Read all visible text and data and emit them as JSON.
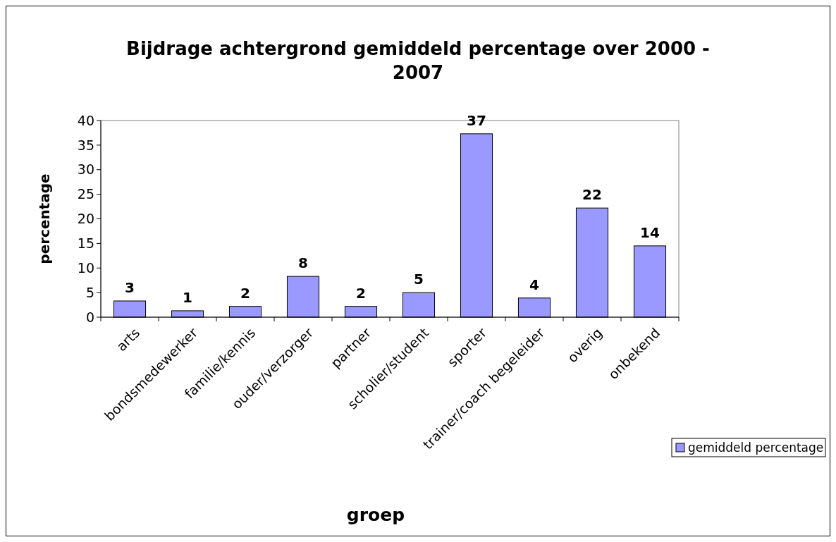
{
  "chart_data": {
    "type": "bar",
    "title": "Bijdrage achtergrond gemiddeld percentage over 2000 - 2007",
    "xlabel": "groep",
    "ylabel": "percentage",
    "categories": [
      "arts",
      "bondsmedewerker",
      "familie/kennis",
      "ouder/verzorger",
      "partner",
      "scholier/student",
      "sporter",
      "trainer/coach begeleider",
      "overig",
      "onbekend"
    ],
    "series": [
      {
        "name": "gemiddeld percentage",
        "color": "#9999ff",
        "values": [
          3.3,
          1.3,
          2.2,
          8.3,
          2.2,
          5.0,
          37.3,
          3.9,
          22.2,
          14.5
        ],
        "value_labels": [
          "3",
          "1",
          "2",
          "8",
          "2",
          "5",
          "37",
          "4",
          "22",
          "14"
        ]
      }
    ],
    "ylim": [
      0,
      40
    ],
    "yticks": [
      0,
      5,
      10,
      15,
      20,
      25,
      30,
      35,
      40
    ],
    "grid": false,
    "legend": "bottom right"
  }
}
